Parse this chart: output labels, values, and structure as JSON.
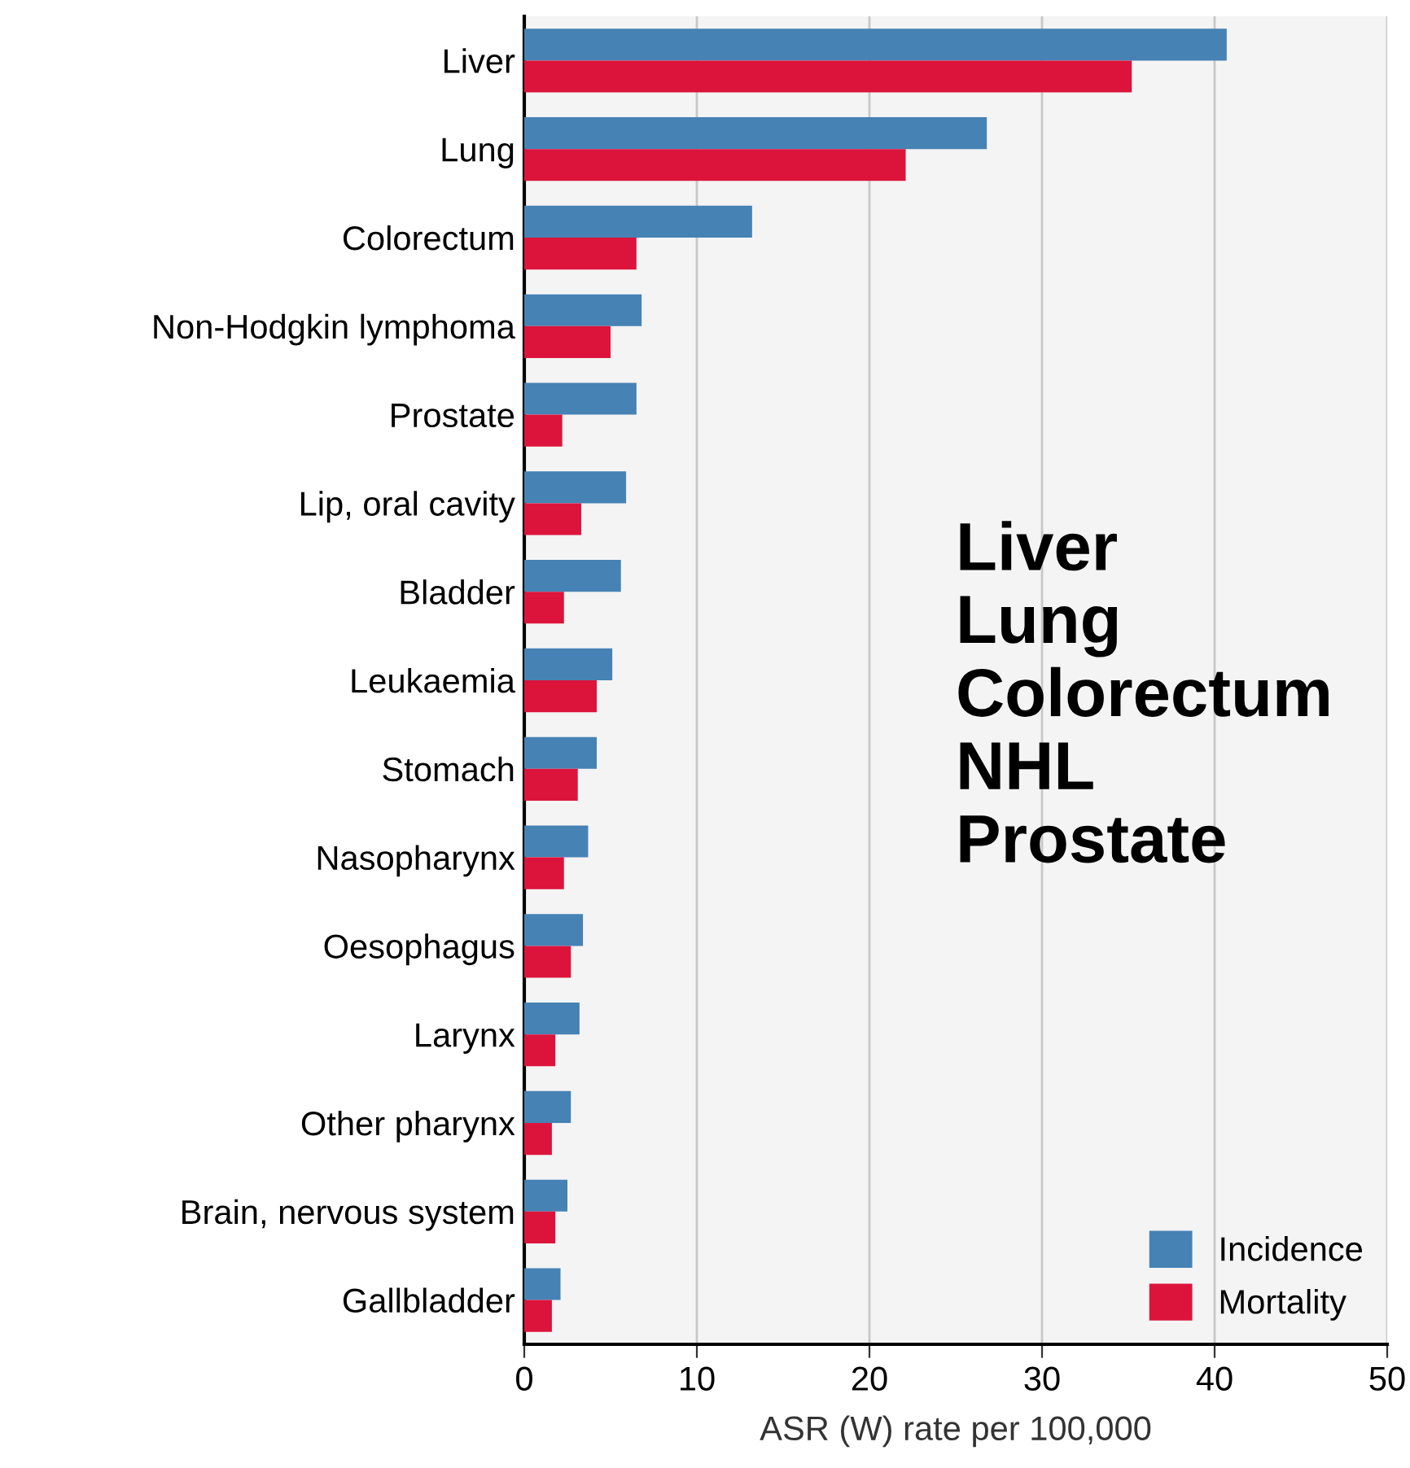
{
  "chart_data": {
    "type": "bar",
    "orientation": "horizontal",
    "categories": [
      "Liver",
      "Lung",
      "Colorectum",
      "Non-Hodgkin lymphoma",
      "Prostate",
      "Lip, oral cavity",
      "Bladder",
      "Leukaemia",
      "Stomach",
      "Nasopharynx",
      "Oesophagus",
      "Larynx",
      "Other pharynx",
      "Brain, nervous system",
      "Gallbladder"
    ],
    "series": [
      {
        "name": "Incidence",
        "color": "#4682b4",
        "values": [
          40.7,
          26.8,
          13.2,
          6.8,
          6.5,
          5.9,
          5.6,
          5.1,
          4.2,
          3.7,
          3.4,
          3.2,
          2.7,
          2.5,
          2.1
        ]
      },
      {
        "name": "Mortality",
        "color": "#dc143c",
        "values": [
          35.2,
          22.1,
          6.5,
          5.0,
          2.2,
          3.3,
          2.3,
          4.2,
          3.1,
          2.3,
          2.7,
          1.8,
          1.6,
          1.8,
          1.6
        ]
      }
    ],
    "xlabel": "ASR (W) rate per 100,000",
    "xlim": [
      0,
      50
    ],
    "xticks": [
      0,
      10,
      20,
      30,
      40,
      50
    ],
    "grid": "x",
    "legend": "bottom right",
    "annotations": [
      "Liver",
      "Lung",
      "Colorectum",
      "NHL",
      "Prostate"
    ]
  }
}
